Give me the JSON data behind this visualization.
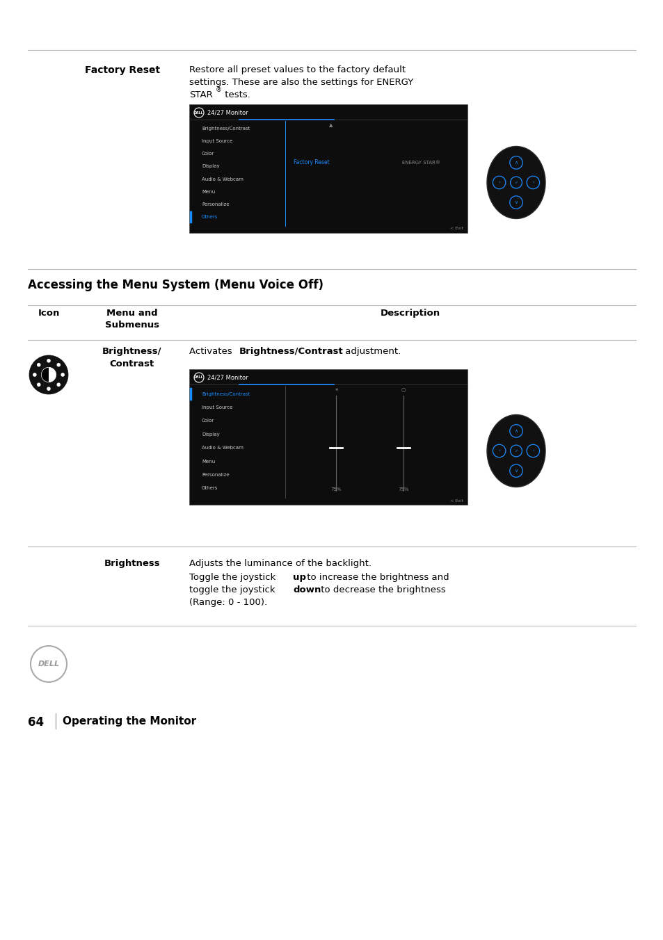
{
  "page_background": "#ffffff",
  "section1_label": "Factory Reset",
  "section1_desc1": "Restore all preset values to the factory default",
  "section1_desc2": "settings. These are also the settings for ENERGY",
  "section1_desc3": "STAR",
  "section1_desc3_sup": "®",
  "section1_desc3_end": " tests.",
  "menu_items_1": [
    "Brightness/Contrast",
    "Input Source",
    "Color",
    "Display",
    "Audio & Webcam",
    "Menu",
    "Personalize",
    "Others"
  ],
  "highlighted_1": "Others",
  "sub_label_1": "Factory Reset",
  "sub_right_1": "ENERGY STAR®",
  "menu_items_2": [
    "Brightness/Contrast",
    "Input Source",
    "Color",
    "Display",
    "Audio & Webcam",
    "Menu",
    "Personalize",
    "Others"
  ],
  "highlighted_2": "Brightness/Contrast",
  "section_header": "Accessing the Menu System (Menu Voice Off)",
  "col_icon": "Icon",
  "col_menu": "Menu and\nSubmenus",
  "col_desc": "Description",
  "row1_menu1": "Brightness/",
  "row1_menu2": "Contrast",
  "row1_desc_pre": "Activates ",
  "row1_desc_bold": "Brightness/Contrast",
  "row1_desc_post": " adjustment.",
  "brightness_label": "Brightness",
  "brightness_desc1": "Adjusts the luminance of the backlight.",
  "brightness_desc2a": "Toggle the joystick ",
  "brightness_desc2b": "up",
  "brightness_desc2c": " to increase the brightness and",
  "brightness_desc3a": "toggle the joystick ",
  "brightness_desc3b": "down",
  "brightness_desc3c": " to decrease the brightness",
  "brightness_desc4": "(Range: 0 - 100).",
  "footer_page": "64",
  "footer_text": "Operating the Monitor",
  "line_color": "#bbbbbb",
  "text_color": "#000000",
  "screen_bg": "#0d0d0d",
  "screen_text": "#cccccc",
  "screen_highlight": "#1a8cff",
  "joystick_bg": "#111111",
  "joystick_arrow": "#1a8cff"
}
